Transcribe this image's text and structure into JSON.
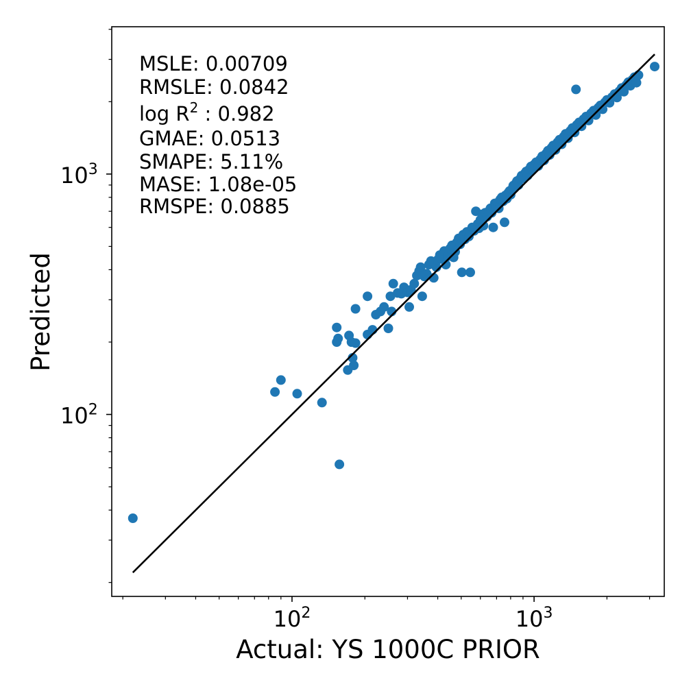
{
  "chart_data": {
    "type": "scatter",
    "title": "",
    "xlabel": "Actual: YS 1000C PRIOR",
    "ylabel": "Predicted",
    "xscale": "log",
    "yscale": "log",
    "xlim": [
      18,
      3450
    ],
    "ylim": [
      17.5,
      4100
    ],
    "grid": false,
    "marker_color": "#1f77b4",
    "line_color": "#000000",
    "x_ticks": [
      {
        "value": 100,
        "base": "10",
        "exp": "2"
      },
      {
        "value": 1000,
        "base": "10",
        "exp": "3"
      }
    ],
    "y_ticks": [
      {
        "value": 100,
        "base": "10",
        "exp": "2"
      },
      {
        "value": 1000,
        "base": "10",
        "exp": "3"
      }
    ],
    "identity_line": {
      "from": 22,
      "to": 3150
    },
    "metrics": [
      {
        "text": "MSLE: 0.00709"
      },
      {
        "text": "RMSLE: 0.0842"
      },
      {
        "text": "log R",
        "sup": "2",
        "suffix": " : 0.982"
      },
      {
        "text": "GMAE: 0.0513"
      },
      {
        "text": "SMAPE: 5.11%"
      },
      {
        "text": "MASE: 1.08e-05"
      },
      {
        "text": "RMSPE: 0.0885"
      }
    ],
    "points": [
      [
        22,
        37
      ],
      [
        85,
        124
      ],
      [
        90,
        139
      ],
      [
        105,
        122
      ],
      [
        133,
        112
      ],
      [
        157,
        62
      ],
      [
        153,
        200
      ],
      [
        153,
        230
      ],
      [
        155,
        207
      ],
      [
        170,
        153
      ],
      [
        172,
        213
      ],
      [
        176,
        200
      ],
      [
        178,
        172
      ],
      [
        180,
        160
      ],
      [
        183,
        198
      ],
      [
        183,
        275
      ],
      [
        205,
        215
      ],
      [
        205,
        310
      ],
      [
        215,
        225
      ],
      [
        222,
        260
      ],
      [
        232,
        268
      ],
      [
        240,
        280
      ],
      [
        250,
        228
      ],
      [
        258,
        268
      ],
      [
        255,
        310
      ],
      [
        262,
        350
      ],
      [
        273,
        320
      ],
      [
        283,
        318
      ],
      [
        290,
        338
      ],
      [
        300,
        322
      ],
      [
        305,
        280
      ],
      [
        310,
        330
      ],
      [
        320,
        350
      ],
      [
        328,
        378
      ],
      [
        335,
        395
      ],
      [
        340,
        410
      ],
      [
        345,
        310
      ],
      [
        352,
        375
      ],
      [
        360,
        385
      ],
      [
        368,
        420
      ],
      [
        375,
        435
      ],
      [
        385,
        370
      ],
      [
        395,
        410
      ],
      [
        400,
        440
      ],
      [
        408,
        460
      ],
      [
        415,
        445
      ],
      [
        425,
        478
      ],
      [
        432,
        420
      ],
      [
        440,
        455
      ],
      [
        450,
        490
      ],
      [
        458,
        505
      ],
      [
        465,
        450
      ],
      [
        472,
        475
      ],
      [
        480,
        520
      ],
      [
        488,
        540
      ],
      [
        495,
        510
      ],
      [
        503,
        390
      ],
      [
        510,
        560
      ],
      [
        518,
        535
      ],
      [
        528,
        575
      ],
      [
        538,
        550
      ],
      [
        545,
        390
      ],
      [
        555,
        600
      ],
      [
        565,
        580
      ],
      [
        575,
        700
      ],
      [
        585,
        620
      ],
      [
        592,
        595
      ],
      [
        600,
        645
      ],
      [
        610,
        680
      ],
      [
        618,
        610
      ],
      [
        628,
        690
      ],
      [
        640,
        665
      ],
      [
        650,
        700
      ],
      [
        660,
        720
      ],
      [
        668,
        690
      ],
      [
        678,
        600
      ],
      [
        688,
        755
      ],
      [
        695,
        735
      ],
      [
        705,
        760
      ],
      [
        715,
        720
      ],
      [
        725,
        785
      ],
      [
        735,
        800
      ],
      [
        745,
        770
      ],
      [
        755,
        630
      ],
      [
        762,
        815
      ],
      [
        772,
        790
      ],
      [
        782,
        835
      ],
      [
        792,
        850
      ],
      [
        800,
        820
      ],
      [
        810,
        865
      ],
      [
        820,
        895
      ],
      [
        830,
        875
      ],
      [
        840,
        915
      ],
      [
        850,
        935
      ],
      [
        862,
        900
      ],
      [
        875,
        955
      ],
      [
        888,
        985
      ],
      [
        900,
        960
      ],
      [
        915,
        1005
      ],
      [
        928,
        1025
      ],
      [
        940,
        985
      ],
      [
        955,
        1045
      ],
      [
        970,
        1075
      ],
      [
        985,
        1040
      ],
      [
        1000,
        1095
      ],
      [
        1020,
        1120
      ],
      [
        1040,
        1080
      ],
      [
        1060,
        1150
      ],
      [
        1080,
        1185
      ],
      [
        1100,
        1140
      ],
      [
        1120,
        1215
      ],
      [
        1140,
        1250
      ],
      [
        1160,
        1200
      ],
      [
        1180,
        1285
      ],
      [
        1200,
        1315
      ],
      [
        1225,
        1260
      ],
      [
        1250,
        1355
      ],
      [
        1275,
        1390
      ],
      [
        1300,
        1330
      ],
      [
        1325,
        1430
      ],
      [
        1350,
        1470
      ],
      [
        1380,
        1410
      ],
      [
        1410,
        1510
      ],
      [
        1440,
        1555
      ],
      [
        1470,
        1490
      ],
      [
        1490,
        2250
      ],
      [
        1500,
        1600
      ],
      [
        1535,
        1640
      ],
      [
        1570,
        1580
      ],
      [
        1600,
        1690
      ],
      [
        1640,
        1735
      ],
      [
        1680,
        1670
      ],
      [
        1720,
        1790
      ],
      [
        1760,
        1835
      ],
      [
        1800,
        1760
      ],
      [
        1840,
        1885
      ],
      [
        1880,
        1930
      ],
      [
        1920,
        1860
      ],
      [
        1960,
        1985
      ],
      [
        2000,
        2035
      ],
      [
        2050,
        1980
      ],
      [
        2100,
        2090
      ],
      [
        2150,
        2150
      ],
      [
        2200,
        2080
      ],
      [
        2250,
        2210
      ],
      [
        2300,
        2280
      ],
      [
        2350,
        2200
      ],
      [
        2400,
        2340
      ],
      [
        2450,
        2410
      ],
      [
        2500,
        2330
      ],
      [
        2550,
        2470
      ],
      [
        2600,
        2530
      ],
      [
        2650,
        2400
      ],
      [
        2700,
        2580
      ],
      [
        3150,
        2800
      ]
    ]
  }
}
